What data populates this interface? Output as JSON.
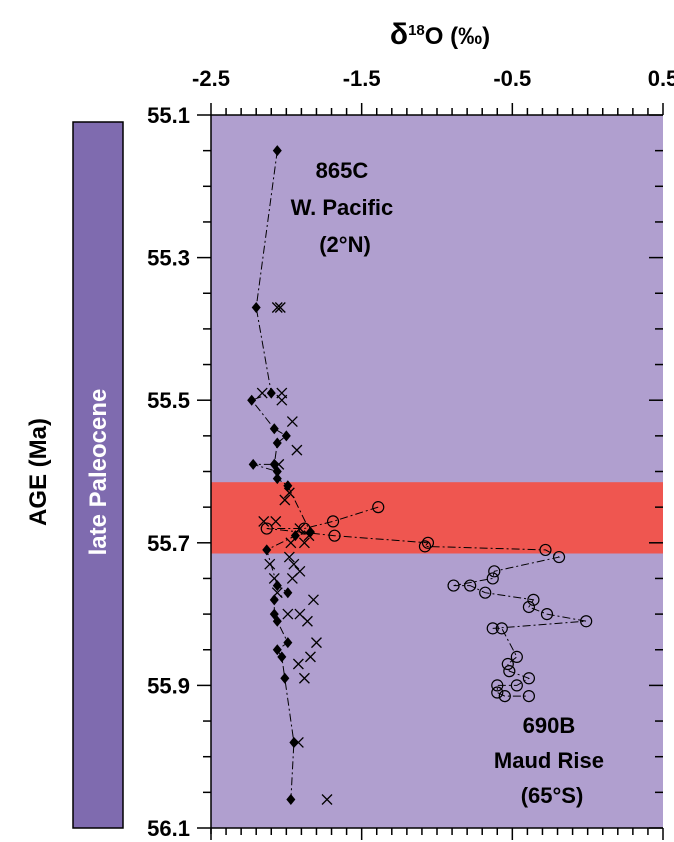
{
  "chart_data": {
    "type": "scatter",
    "title": "δ18O (‰)",
    "title_parts": {
      "delta": "δ",
      "sup": "18",
      "rest": "O (‰)"
    },
    "ylabel": "AGE (Ma)",
    "epoch_label": "late Paleocene",
    "xlim": [
      -2.5,
      0.5
    ],
    "ylim": [
      55.1,
      56.1
    ],
    "y_inverted": true,
    "x_ticks": [
      "-2.5",
      "-1.5",
      "-0.5",
      "0.5"
    ],
    "x_tick_values": [
      -2.5,
      -1.5,
      -0.5,
      0.5
    ],
    "y_ticks": [
      "55.1",
      "55.3",
      "55.5",
      "55.7",
      "55.9",
      "56.1"
    ],
    "y_tick_values": [
      55.1,
      55.3,
      55.5,
      55.7,
      55.9,
      56.1
    ],
    "event_band": {
      "y_from": 55.615,
      "y_to": 55.715
    },
    "annotations": [
      {
        "lines": [
          "865C",
          "W. Pacific",
          "(2°N)"
        ]
      },
      {
        "lines": [
          "690B",
          "Maud Rise",
          "(65°S)"
        ]
      }
    ],
    "series": [
      {
        "marker": "diamond",
        "values": [
          [
            -2.06,
            55.15
          ],
          [
            -2.2,
            55.37
          ],
          [
            -2.1,
            55.49
          ],
          [
            -2.23,
            55.5
          ],
          [
            -2.08,
            55.54
          ],
          [
            -2.0,
            55.55
          ],
          [
            -2.06,
            55.56
          ],
          [
            -2.08,
            55.59
          ],
          [
            -2.06,
            55.6
          ],
          [
            -2.22,
            55.59
          ],
          [
            -2.06,
            55.61
          ],
          [
            -1.99,
            55.62
          ],
          [
            -1.94,
            55.69
          ],
          [
            -1.84,
            55.685
          ],
          [
            -2.13,
            55.71
          ],
          [
            -2.06,
            55.76
          ],
          [
            -2.08,
            55.78
          ],
          [
            -1.99,
            55.77
          ],
          [
            -2.08,
            55.8
          ],
          [
            -2.06,
            55.81
          ],
          [
            -1.99,
            55.84
          ],
          [
            -2.06,
            55.85
          ],
          [
            -2.03,
            55.86
          ],
          [
            -2.01,
            55.89
          ],
          [
            -1.95,
            55.98
          ],
          [
            -1.97,
            56.06
          ]
        ]
      },
      {
        "marker": "cross",
        "values": [
          [
            -2.06,
            55.37
          ],
          [
            -2.04,
            55.37
          ],
          [
            -2.16,
            55.49
          ],
          [
            -2.03,
            55.49
          ],
          [
            -2.03,
            55.5
          ],
          [
            -1.96,
            55.53
          ],
          [
            -1.93,
            55.57
          ],
          [
            -2.05,
            55.59
          ],
          [
            -2.01,
            55.64
          ],
          [
            -1.98,
            55.63
          ],
          [
            -2.07,
            55.67
          ],
          [
            -2.15,
            55.67
          ],
          [
            -1.91,
            55.68
          ],
          [
            -1.97,
            55.7
          ],
          [
            -1.88,
            55.7
          ],
          [
            -1.85,
            55.69
          ],
          [
            -2.11,
            55.73
          ],
          [
            -1.98,
            55.72
          ],
          [
            -1.95,
            55.73
          ],
          [
            -1.91,
            55.74
          ],
          [
            -2.08,
            55.75
          ],
          [
            -2.06,
            55.77
          ],
          [
            -1.96,
            55.75
          ],
          [
            -1.82,
            55.78
          ],
          [
            -1.99,
            55.8
          ],
          [
            -1.91,
            55.8
          ],
          [
            -1.86,
            55.81
          ],
          [
            -1.8,
            55.84
          ],
          [
            -1.84,
            55.86
          ],
          [
            -1.92,
            55.87
          ],
          [
            -1.88,
            55.89
          ],
          [
            -1.92,
            55.98
          ],
          [
            -1.73,
            56.06
          ]
        ]
      },
      {
        "marker": "circle",
        "values": [
          [
            -1.39,
            55.65
          ],
          [
            -1.69,
            55.67
          ],
          [
            -1.68,
            55.69
          ],
          [
            -1.88,
            55.68
          ],
          [
            -2.13,
            55.68
          ],
          [
            -1.06,
            55.7
          ],
          [
            -1.08,
            55.705
          ],
          [
            -0.28,
            55.71
          ],
          [
            -0.19,
            55.72
          ],
          [
            -0.62,
            55.74
          ],
          [
            -0.63,
            55.75
          ],
          [
            -0.89,
            55.76
          ],
          [
            -0.78,
            55.76
          ],
          [
            -0.68,
            55.77
          ],
          [
            -0.36,
            55.78
          ],
          [
            -0.39,
            55.79
          ],
          [
            -0.27,
            55.8
          ],
          [
            -0.01,
            55.81
          ],
          [
            -0.63,
            55.82
          ],
          [
            -0.57,
            55.82
          ],
          [
            -0.47,
            55.86
          ],
          [
            -0.53,
            55.87
          ],
          [
            -0.52,
            55.88
          ],
          [
            -0.39,
            55.89
          ],
          [
            -0.47,
            55.9
          ],
          [
            -0.6,
            55.9
          ],
          [
            -0.6,
            55.91
          ],
          [
            -0.55,
            55.915
          ],
          [
            -0.39,
            55.915
          ]
        ]
      }
    ]
  }
}
